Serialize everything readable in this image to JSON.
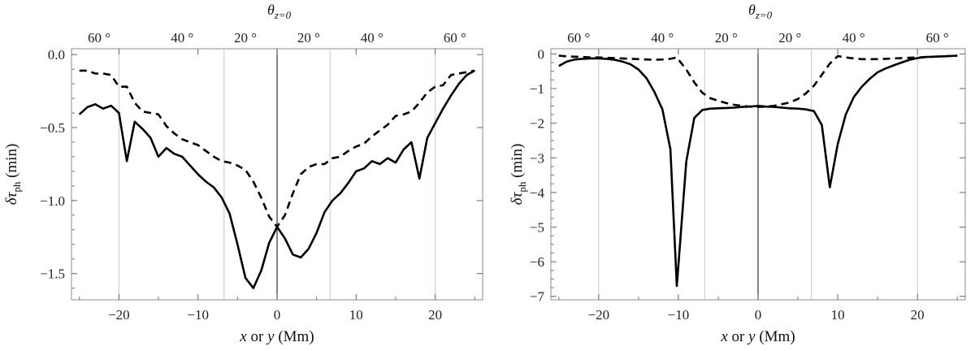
{
  "chart_data": [
    {
      "type": "line",
      "id": "left",
      "xlabel_italic": "x",
      "xlabel_mid": " or ",
      "xlabel_italic2": "y",
      "xlabel_tail": " (Mm)",
      "ylabel_main": "δτ",
      "ylabel_sub": "ph",
      "ylabel_unit": " (min)",
      "top_title_main": "θ",
      "top_title_sub": "z=0",
      "xlim": [
        -26,
        26
      ],
      "ylim": [
        -1.68,
        0.04
      ],
      "xticks": [
        -20,
        -10,
        0,
        10,
        20
      ],
      "xtick_labels": [
        "−20",
        "−10",
        "0",
        "10",
        "20"
      ],
      "yticks": [
        0,
        -0.5,
        -1,
        -1.5
      ],
      "ytick_labels": [
        "0.0",
        "−0.5",
        "−1.0",
        "−1.5"
      ],
      "vlines": [
        -20,
        -6.7,
        6.7,
        20
      ],
      "top_ticks": [
        {
          "x": -22.5,
          "label": "60 °"
        },
        {
          "x": -12,
          "label": "40 °"
        },
        {
          "x": -4,
          "label": "20 °"
        },
        {
          "x": 4,
          "label": "20 °"
        },
        {
          "x": 12,
          "label": "40 °"
        },
        {
          "x": 22.5,
          "label": "60 °"
        }
      ],
      "series": [
        {
          "name": "solid",
          "style": "solid",
          "x": [
            -25,
            -24,
            -23,
            -22,
            -21,
            -20,
            -19,
            -18,
            -17,
            -16,
            -15,
            -14,
            -13,
            -12,
            -11,
            -10,
            -9,
            -8,
            -7,
            -6,
            -5,
            -4,
            -3,
            -2,
            -1,
            0,
            1,
            2,
            3,
            4,
            5,
            6,
            7,
            8,
            9,
            10,
            11,
            12,
            13,
            14,
            15,
            16,
            17,
            18,
            19,
            20,
            21,
            22,
            23,
            24,
            25
          ],
          "y": [
            -0.41,
            -0.36,
            -0.34,
            -0.37,
            -0.35,
            -0.4,
            -0.73,
            -0.46,
            -0.51,
            -0.57,
            -0.7,
            -0.64,
            -0.68,
            -0.7,
            -0.76,
            -0.82,
            -0.87,
            -0.91,
            -0.98,
            -1.09,
            -1.3,
            -1.53,
            -1.6,
            -1.48,
            -1.29,
            -1.18,
            -1.26,
            -1.37,
            -1.39,
            -1.33,
            -1.22,
            -1.08,
            -1.0,
            -0.95,
            -0.88,
            -0.8,
            -0.78,
            -0.73,
            -0.75,
            -0.71,
            -0.74,
            -0.65,
            -0.6,
            -0.85,
            -0.57,
            -0.47,
            -0.37,
            -0.28,
            -0.2,
            -0.14,
            -0.11
          ]
        },
        {
          "name": "dashed",
          "style": "dashed",
          "x": [
            -25,
            -24,
            -23,
            -22,
            -21,
            -20,
            -19,
            -18,
            -17,
            -16,
            -15,
            -14,
            -13,
            -12,
            -11,
            -10,
            -9,
            -8,
            -7,
            -6,
            -5,
            -4,
            -3,
            -2,
            -1,
            0,
            1,
            2,
            3,
            4,
            5,
            6,
            7,
            8,
            9,
            10,
            11,
            12,
            13,
            14,
            15,
            16,
            17,
            18,
            19,
            20,
            21,
            22,
            23,
            24,
            25
          ],
          "y": [
            -0.11,
            -0.11,
            -0.13,
            -0.13,
            -0.14,
            -0.22,
            -0.22,
            -0.33,
            -0.39,
            -0.4,
            -0.41,
            -0.49,
            -0.54,
            -0.58,
            -0.6,
            -0.62,
            -0.66,
            -0.7,
            -0.73,
            -0.74,
            -0.76,
            -0.79,
            -0.87,
            -0.98,
            -1.11,
            -1.18,
            -1.1,
            -0.95,
            -0.82,
            -0.77,
            -0.75,
            -0.75,
            -0.71,
            -0.7,
            -0.66,
            -0.63,
            -0.61,
            -0.56,
            -0.52,
            -0.48,
            -0.42,
            -0.41,
            -0.39,
            -0.33,
            -0.26,
            -0.22,
            -0.21,
            -0.14,
            -0.13,
            -0.12,
            -0.11
          ]
        }
      ]
    },
    {
      "type": "line",
      "id": "right",
      "xlabel_italic": "x",
      "xlabel_mid": " or ",
      "xlabel_italic2": "y",
      "xlabel_tail": " (Mm)",
      "ylabel_main": "δτ",
      "ylabel_sub": "ph",
      "ylabel_unit": " (min)",
      "top_title_main": "θ",
      "top_title_sub": "z=0",
      "xlim": [
        -26,
        26
      ],
      "ylim": [
        -7.1,
        0.15
      ],
      "xticks": [
        -20,
        -10,
        0,
        10,
        20
      ],
      "xtick_labels": [
        "−20",
        "−10",
        "0",
        "10",
        "20"
      ],
      "yticks": [
        0,
        -1,
        -2,
        -3,
        -4,
        -5,
        -6,
        -7
      ],
      "ytick_labels": [
        "0",
        "−1",
        "−2",
        "−3",
        "−4",
        "−5",
        "−6",
        "−7"
      ],
      "vlines": [
        -20,
        -6.7,
        6.7,
        20
      ],
      "top_ticks": [
        {
          "x": -22.5,
          "label": "60 °"
        },
        {
          "x": -12,
          "label": "40 °"
        },
        {
          "x": -4,
          "label": "20 °"
        },
        {
          "x": 4,
          "label": "20 °"
        },
        {
          "x": 12,
          "label": "40 °"
        },
        {
          "x": 22.5,
          "label": "60 °"
        }
      ],
      "series": [
        {
          "name": "solid",
          "style": "solid",
          "x": [
            -25,
            -24,
            -23,
            -22,
            -21,
            -20,
            -19,
            -18,
            -17,
            -16,
            -15,
            -14,
            -13,
            -12,
            -11,
            -10.2,
            -9,
            -8,
            -7,
            -6,
            -5,
            -4,
            -3,
            -2,
            -1,
            0,
            1,
            2,
            3,
            4,
            5,
            6,
            7,
            8,
            9,
            10,
            11,
            12,
            13,
            14,
            15,
            16,
            17,
            18,
            19,
            20,
            21,
            22,
            23,
            24,
            25
          ],
          "y": [
            -0.35,
            -0.22,
            -0.16,
            -0.14,
            -0.13,
            -0.13,
            -0.14,
            -0.17,
            -0.22,
            -0.3,
            -0.45,
            -0.7,
            -1.1,
            -1.6,
            -2.75,
            -6.7,
            -3.1,
            -1.85,
            -1.62,
            -1.58,
            -1.57,
            -1.56,
            -1.55,
            -1.53,
            -1.52,
            -1.5,
            -1.52,
            -1.53,
            -1.55,
            -1.57,
            -1.58,
            -1.6,
            -1.65,
            -2.05,
            -3.85,
            -2.6,
            -1.75,
            -1.25,
            -0.95,
            -0.72,
            -0.53,
            -0.42,
            -0.33,
            -0.25,
            -0.17,
            -0.12,
            -0.09,
            -0.08,
            -0.07,
            -0.06,
            -0.05
          ]
        },
        {
          "name": "dashed",
          "style": "dashed",
          "x": [
            -25,
            -24,
            -23,
            -22,
            -21,
            -20,
            -19,
            -18,
            -17,
            -16,
            -15,
            -14,
            -13,
            -12,
            -11,
            -10.2,
            -9,
            -8,
            -7,
            -6,
            -5,
            -4,
            -3,
            -2,
            -1,
            0,
            1,
            2,
            3,
            4,
            5,
            6,
            7,
            8,
            9,
            10,
            11,
            12,
            13,
            14,
            15,
            16,
            17,
            18,
            19,
            20,
            21,
            22,
            23,
            24,
            25
          ],
          "y": [
            -0.05,
            -0.07,
            -0.08,
            -0.09,
            -0.1,
            -0.1,
            -0.11,
            -0.12,
            -0.13,
            -0.14,
            -0.15,
            -0.16,
            -0.17,
            -0.16,
            -0.14,
            -0.1,
            -0.45,
            -0.82,
            -1.12,
            -1.28,
            -1.35,
            -1.42,
            -1.47,
            -1.5,
            -1.52,
            -1.53,
            -1.52,
            -1.5,
            -1.45,
            -1.4,
            -1.3,
            -1.14,
            -0.92,
            -0.6,
            -0.28,
            -0.06,
            -0.1,
            -0.13,
            -0.15,
            -0.15,
            -0.15,
            -0.14,
            -0.13,
            -0.12,
            -0.11,
            -0.1,
            -0.09,
            -0.08,
            -0.07,
            -0.06,
            -0.05
          ]
        }
      ]
    }
  ]
}
